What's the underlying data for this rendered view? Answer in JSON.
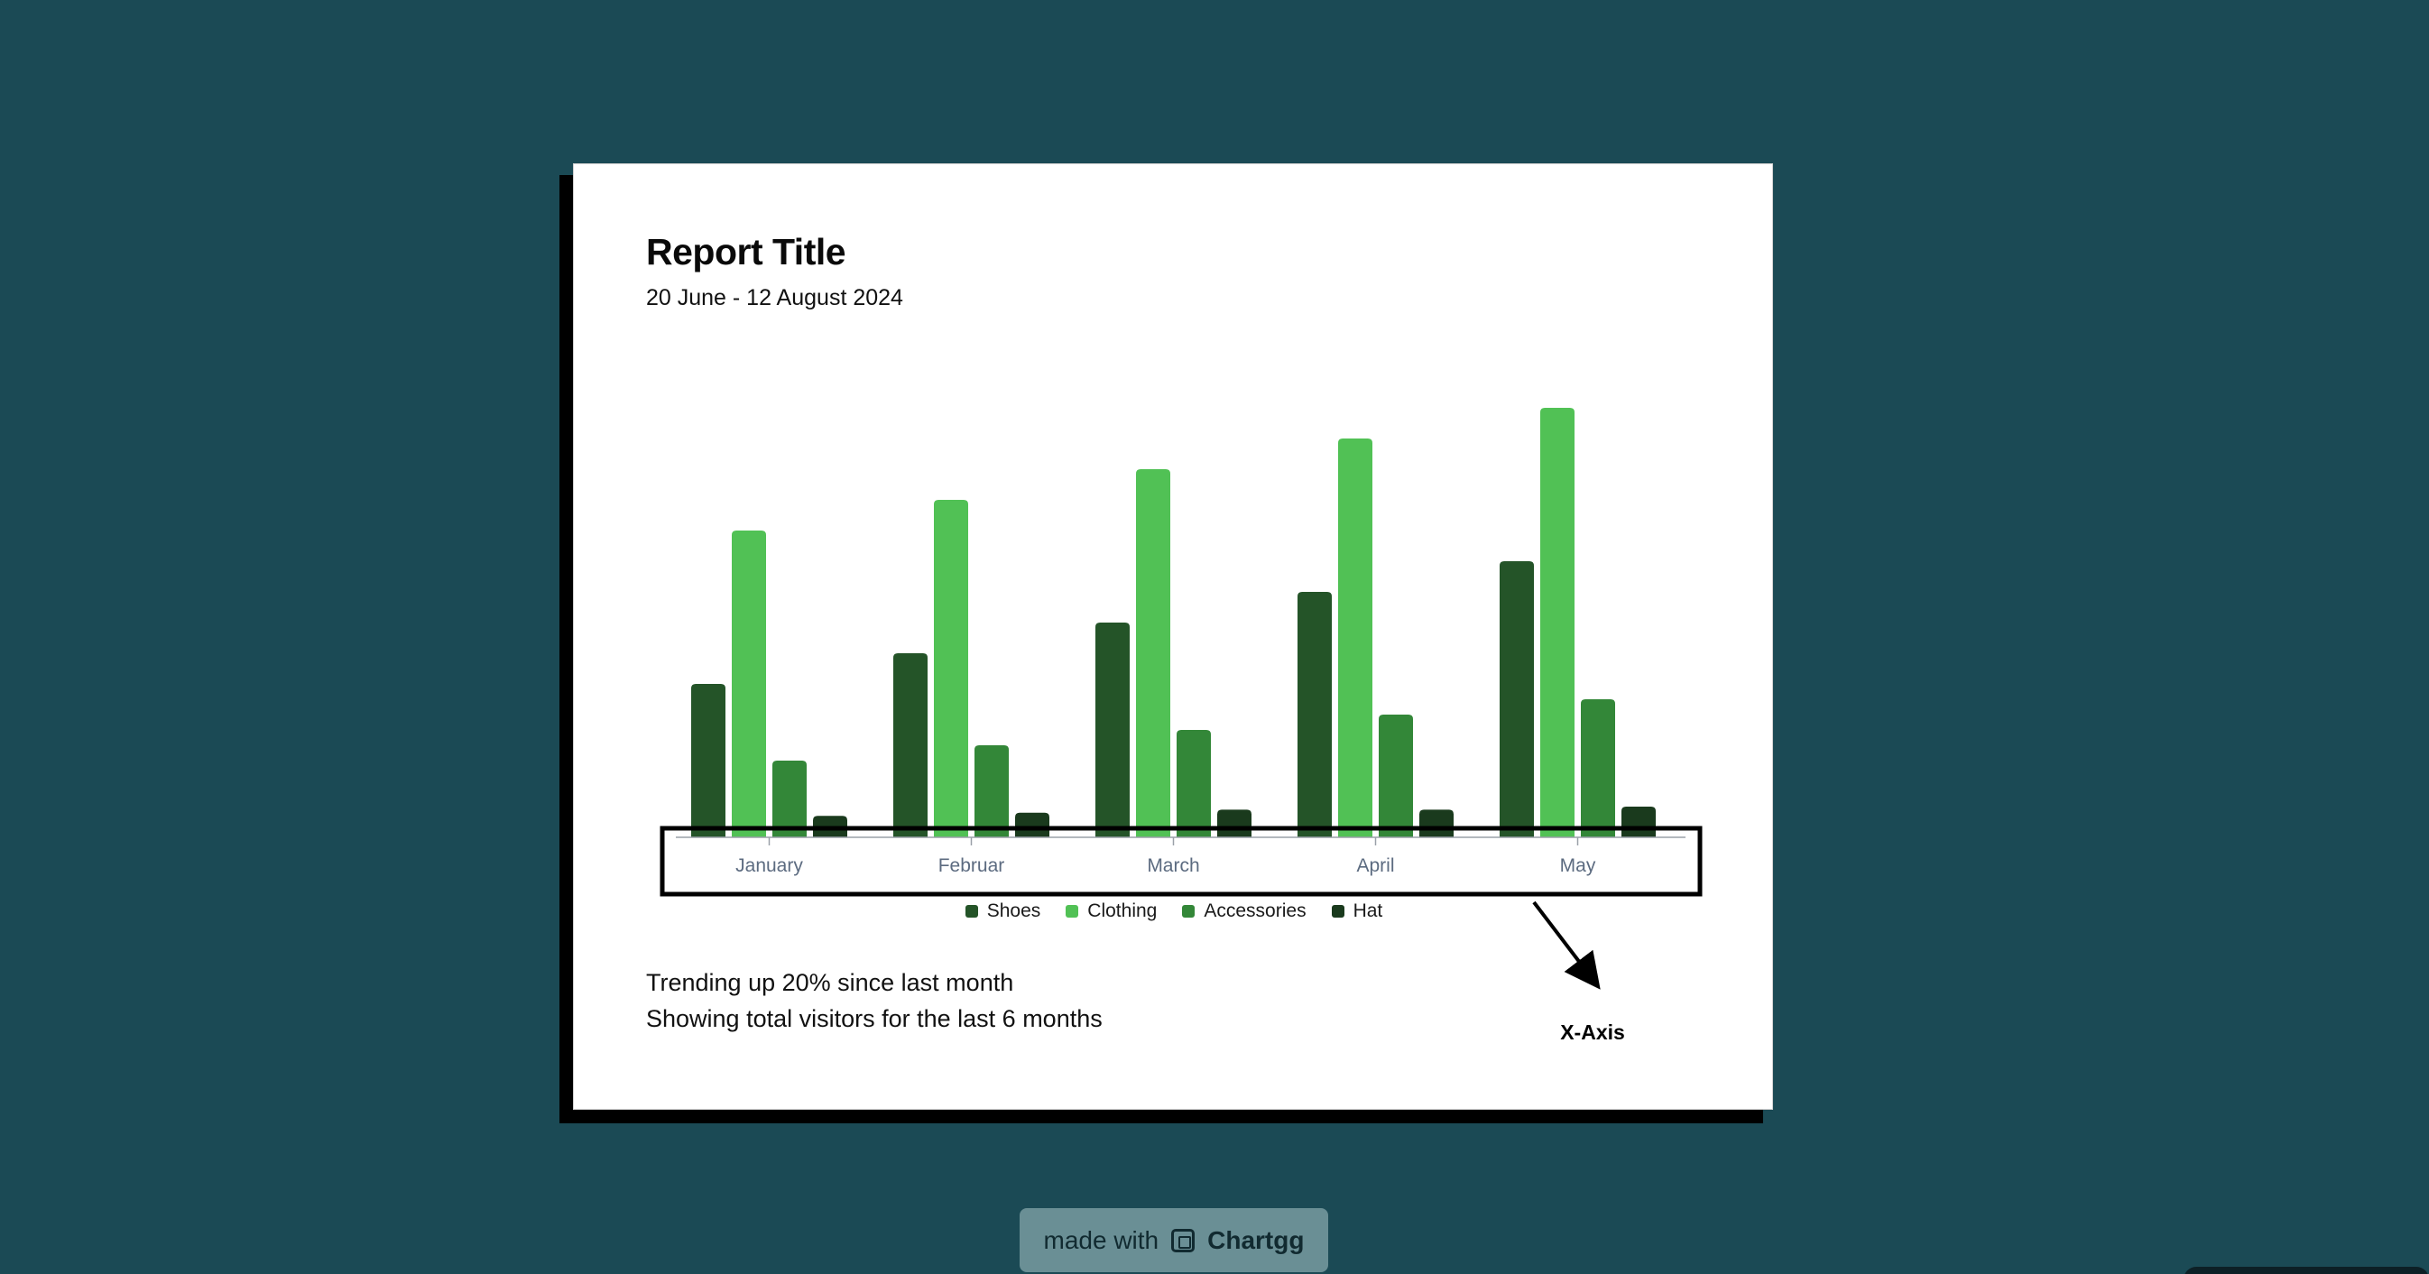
{
  "report": {
    "title": "Report Title",
    "subtitle": "20 June - 12 August 2024",
    "footer_line_1": "Trending up 20% since last month",
    "footer_line_2": "Showing total visitors for the last 6 months"
  },
  "annotation": {
    "label": "X-Axis"
  },
  "badge": {
    "prefix": "made with",
    "brand": "Chartgg",
    "icon": "chartgg-logo-icon"
  },
  "colors": {
    "background": "#1b4a55",
    "card": "#ffffff",
    "shoes": "#245428",
    "clothing": "#51c155",
    "accessories": "#338738",
    "hat": "#1a3a1d"
  },
  "chart_data": {
    "type": "bar",
    "categories": [
      "January",
      "Februar",
      "March",
      "April",
      "May"
    ],
    "series": [
      {
        "name": "Shoes",
        "values": [
          50,
          60,
          70,
          80,
          90
        ]
      },
      {
        "name": "Clothing",
        "values": [
          100,
          110,
          120,
          130,
          140
        ]
      },
      {
        "name": "Accessories",
        "values": [
          25,
          30,
          35,
          40,
          45
        ]
      },
      {
        "name": "Hat",
        "values": [
          7,
          8,
          9,
          9,
          10
        ]
      }
    ],
    "ylim": [
      0,
      150
    ],
    "grid": false,
    "legend": "bottom-center",
    "highlighted": "x-axis"
  }
}
